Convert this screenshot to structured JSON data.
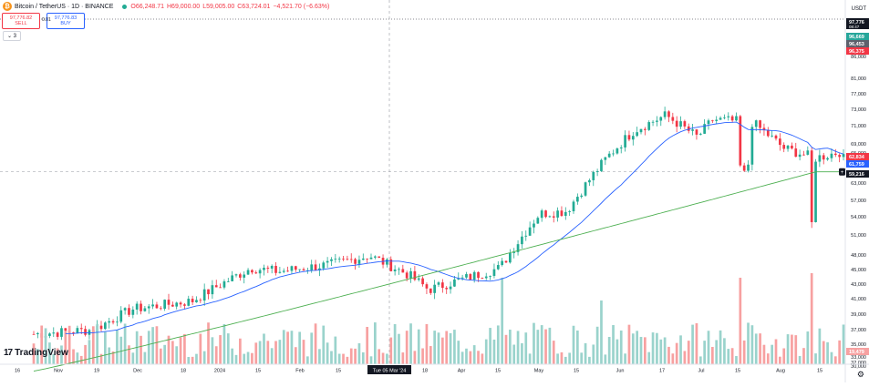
{
  "header": {
    "logo_glyph": "₿",
    "symbol": "Bitcoin / TetherUS · 1D · BINANCE",
    "open": "O66,248.71",
    "high": "H69,000.00",
    "low": "L59,005.00",
    "close": "C63,724.01",
    "change": "−4,521.70 (−6.63%)",
    "colors": {
      "up": "#22ab94",
      "down": "#f23645",
      "accent": "#2962ff"
    }
  },
  "trade": {
    "sell_price": "97,776.82",
    "sell_label": "SELL",
    "spread": "0.01",
    "buy_price": "97,776.83",
    "buy_label": "BUY"
  },
  "indicators_toggle": "⌄ 3",
  "axis": {
    "currency": "USDT",
    "y_ticks": [
      "86,000",
      "81,000",
      "77,000",
      "73,000",
      "71,000",
      "69,000",
      "65,000",
      "63,000",
      "57,000",
      "54,000",
      "51,000",
      "48,000",
      "45,000",
      "43,000",
      "41,000",
      "39,000",
      "37,000",
      "35,000",
      "33,000",
      "32,000",
      "30,000"
    ],
    "x_ticks": [
      "16",
      "Nov",
      "19",
      "Dec",
      "18",
      "2024",
      "15",
      "Feb",
      "15",
      "Tue 05 Mar '24",
      "18",
      "Apr",
      "15",
      "May",
      "15",
      "Jun",
      "17",
      "Jul",
      "15",
      "Aug",
      "15"
    ]
  },
  "price_labels": [
    {
      "text": "97,776",
      "sub": "08:47",
      "color": "#131722"
    },
    {
      "text": "96,669",
      "color": "#26a69a"
    },
    {
      "text": "96,453",
      "color": "#5d606b"
    },
    {
      "text": "96,375",
      "color": "#f23645"
    },
    {
      "text": "62,834",
      "color": "#f23645"
    },
    {
      "text": "61,759",
      "color": "#2962ff"
    },
    {
      "text": "59,216",
      "color": "#131722"
    },
    {
      "text": "19,479",
      "color": "#f7a1a1"
    }
  ],
  "watermark": "TradingView",
  "watermark_mark": "17",
  "settings_icon": "⚙",
  "chart_data": {
    "type": "candlestick",
    "interval": "1D",
    "ylim": [
      30000,
      98000
    ],
    "y_scale": "log",
    "start_close": 34500,
    "end_close": 62834,
    "crosshair_y": 59216,
    "hline_y": 97776,
    "sma_fast_end": 61759,
    "sma_slow_end": 59216,
    "legend_position": "top-left"
  }
}
